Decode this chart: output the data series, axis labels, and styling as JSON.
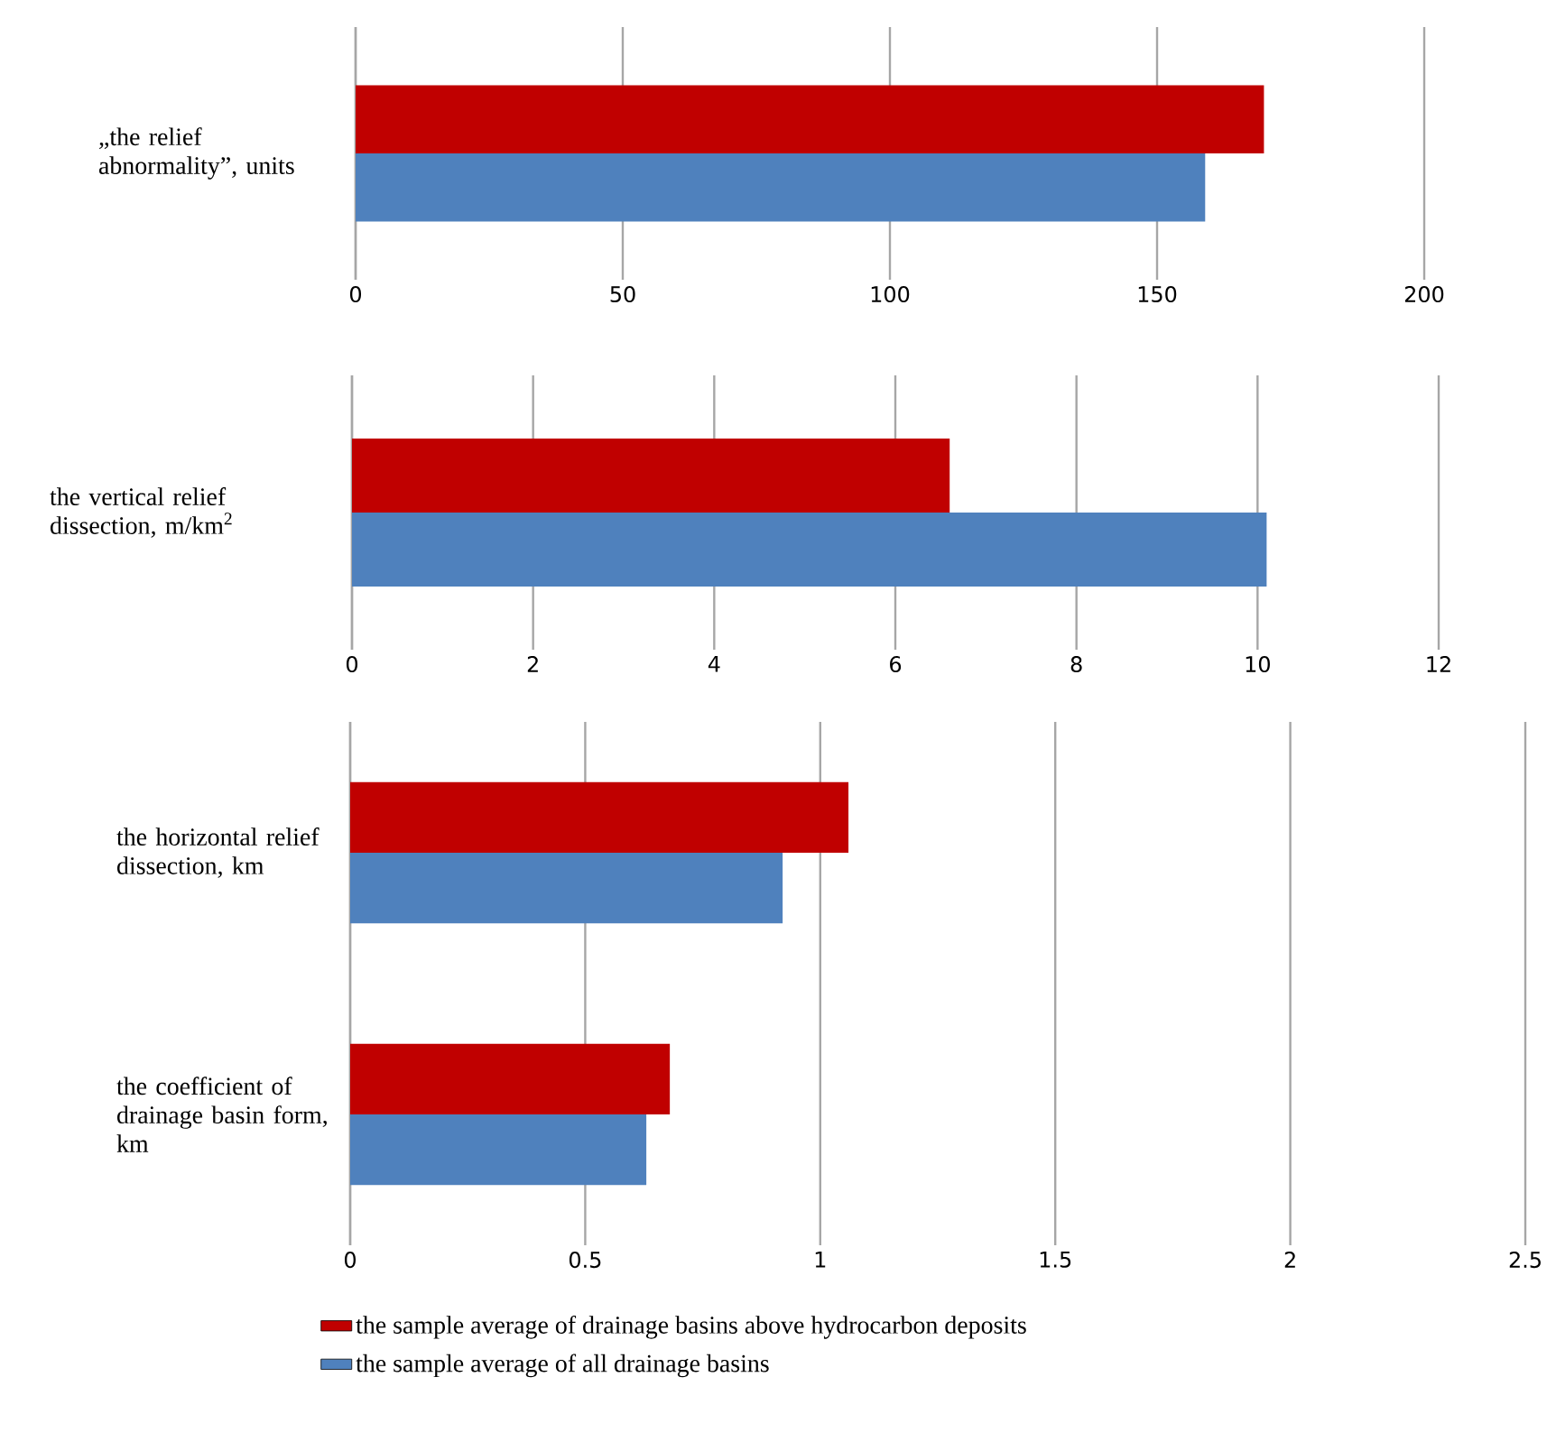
{
  "chart_data": [
    {
      "type": "bar",
      "orientation": "horizontal",
      "categories": [
        "„the relief abnormality”, units"
      ],
      "xlim": [
        0,
        200
      ],
      "xticks": [
        0,
        50,
        100,
        150,
        200
      ],
      "grid": "x",
      "series": [
        {
          "color": "#c00000",
          "values": [
            170
          ]
        },
        {
          "color": "#4f81bd",
          "values": [
            159
          ]
        }
      ]
    },
    {
      "type": "bar",
      "orientation": "horizontal",
      "categories": [
        "the vertical relief dissection, m/km$^{2}$"
      ],
      "xlim": [
        0,
        12
      ],
      "xticks": [
        0,
        2,
        4,
        6,
        8,
        10,
        12
      ],
      "grid": "x",
      "series": [
        {
          "color": "#c00000",
          "values": [
            6.6
          ]
        },
        {
          "color": "#4f81bd",
          "values": [
            10.1
          ]
        }
      ]
    },
    {
      "type": "bar",
      "orientation": "horizontal",
      "categories": [
        "the horizontal relief dissection, km",
        "the coefficient of drainage basin form, km"
      ],
      "xlim": [
        0,
        2.5
      ],
      "xticks": [
        0,
        0.5,
        1,
        1.5,
        2,
        2.5
      ],
      "grid": "x",
      "legend": "bottom",
      "series": [
        {
          "name": "the sample average of drainage basins above hydrocarbon deposits",
          "color": "#c00000",
          "values": [
            1.06,
            0.68
          ]
        },
        {
          "name": "the sample average of all drainage basins",
          "color": "#4f81bd",
          "values": [
            0.92,
            0.63
          ]
        }
      ]
    }
  ]
}
